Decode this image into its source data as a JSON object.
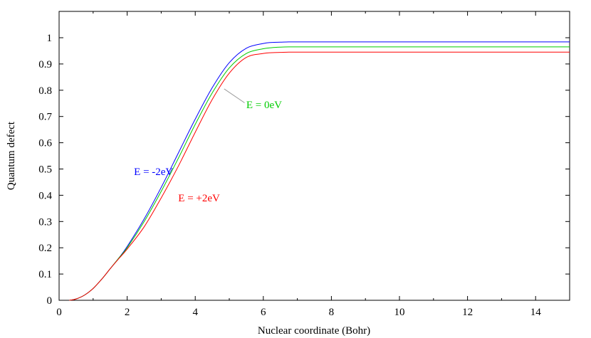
{
  "chart_data": {
    "type": "line",
    "xlabel": "Nuclear coordinate (Bohr)",
    "ylabel": "Quantum defect",
    "xlim": [
      0,
      15
    ],
    "ylim": [
      0,
      1.1
    ],
    "x_ticks": [
      "0",
      "2",
      "4",
      "6",
      "8",
      "10",
      "12",
      "14"
    ],
    "y_ticks": [
      "0",
      "0.1",
      "0.2",
      "0.3",
      "0.4",
      "0.5",
      "0.6",
      "0.7",
      "0.8",
      "0.9",
      "1"
    ],
    "grid": false,
    "legend": "none (inline labels)",
    "series": [
      {
        "name": "E = -2eV",
        "color": "#0000ff",
        "x": [
          0.3,
          0.5,
          0.75,
          1.0,
          1.25,
          1.5,
          1.75,
          2.0,
          2.5,
          3.0,
          3.5,
          4.0,
          4.5,
          5.0,
          5.5,
          6.0,
          6.25,
          6.5,
          6.75,
          7.0,
          8.0,
          10.0,
          12.0,
          15.0
        ],
        "y": [
          0.0,
          0.005,
          0.02,
          0.045,
          0.08,
          0.12,
          0.16,
          0.205,
          0.31,
          0.43,
          0.56,
          0.69,
          0.81,
          0.905,
          0.96,
          0.978,
          0.982,
          0.983,
          0.984,
          0.984,
          0.984,
          0.984,
          0.984,
          0.984
        ]
      },
      {
        "name": "E = 0eV",
        "color": "#00cc00",
        "x": [
          0.3,
          0.5,
          0.75,
          1.0,
          1.25,
          1.5,
          1.75,
          2.0,
          2.5,
          3.0,
          3.5,
          4.0,
          4.5,
          5.0,
          5.5,
          6.0,
          6.25,
          6.5,
          6.75,
          7.0,
          8.0,
          10.0,
          12.0,
          15.0
        ],
        "y": [
          0.0,
          0.005,
          0.02,
          0.045,
          0.08,
          0.12,
          0.16,
          0.2,
          0.3,
          0.415,
          0.54,
          0.67,
          0.79,
          0.885,
          0.94,
          0.958,
          0.962,
          0.964,
          0.965,
          0.965,
          0.965,
          0.965,
          0.965,
          0.965
        ]
      },
      {
        "name": "E = +2eV",
        "color": "#ff0000",
        "x": [
          0.3,
          0.5,
          0.75,
          1.0,
          1.25,
          1.5,
          1.75,
          2.0,
          2.5,
          3.0,
          3.5,
          4.0,
          4.5,
          5.0,
          5.5,
          6.0,
          6.25,
          6.5,
          6.75,
          7.0,
          8.0,
          10.0,
          12.0,
          15.0
        ],
        "y": [
          0.0,
          0.005,
          0.02,
          0.045,
          0.08,
          0.12,
          0.158,
          0.195,
          0.28,
          0.39,
          0.51,
          0.64,
          0.765,
          0.865,
          0.925,
          0.94,
          0.943,
          0.944,
          0.945,
          0.945,
          0.945,
          0.945,
          0.945,
          0.945
        ]
      }
    ],
    "annotations": [
      {
        "text": "E = -2eV",
        "color": "#0000ff",
        "x": 2.2,
        "y": 0.49
      },
      {
        "text": "E = 0eV",
        "color": "#00cc00",
        "x": 5.5,
        "y": 0.745
      },
      {
        "text": "E = +2eV",
        "color": "#ff0000",
        "x": 3.5,
        "y": 0.39
      }
    ]
  }
}
